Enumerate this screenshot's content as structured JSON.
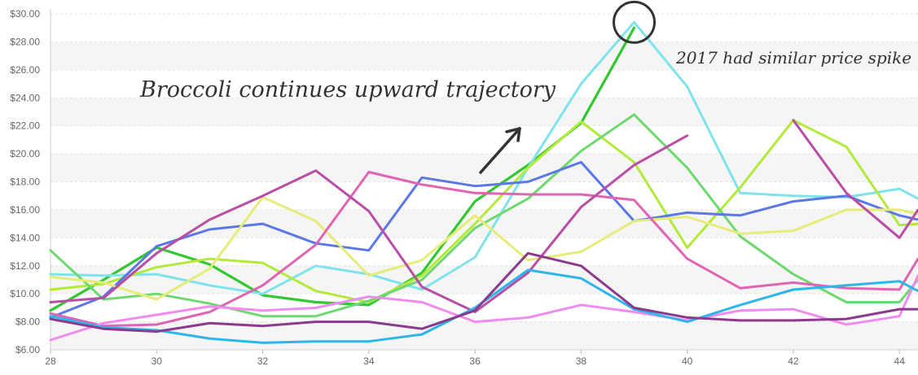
{
  "chart_data": {
    "type": "line",
    "xlim": [
      28,
      44.35
    ],
    "ylim": [
      6,
      30
    ],
    "x_ticks": [
      28,
      30,
      32,
      34,
      36,
      38,
      40,
      42,
      44
    ],
    "y_ticks": [
      6,
      8,
      10,
      12,
      14,
      16,
      18,
      20,
      22,
      24,
      26,
      28,
      30
    ],
    "y_tick_labels": [
      "$6.00",
      "$8.00",
      "$10.00",
      "$12.00",
      "$14.00",
      "$16.00",
      "$18.00",
      "$20.00",
      "$22.00",
      "$24.00",
      "$26.00",
      "$28.00",
      "$30.00"
    ],
    "grid": "alternating horizontal bands",
    "legend": "none",
    "x": [
      28,
      29,
      30,
      31,
      32,
      33,
      34,
      35,
      36,
      37,
      38,
      39,
      40,
      41,
      42,
      43,
      44,
      44.35
    ],
    "series": [
      {
        "color": "#32c832",
        "width": 3.2,
        "values": [
          8.8,
          11.0,
          13.3,
          12.1,
          9.9,
          9.4,
          9.2,
          11.5,
          16.6,
          19.2,
          22.2,
          29.0,
          null,
          null,
          null,
          null,
          null,
          null
        ]
      },
      {
        "color": "#7fe3ec",
        "width": 3.0,
        "values": [
          11.4,
          11.3,
          11.4,
          10.6,
          10.0,
          12.0,
          11.4,
          10.3,
          12.6,
          19.0,
          25.0,
          29.4,
          24.8,
          17.2,
          17.0,
          16.9,
          17.5,
          16.8
        ]
      },
      {
        "color": "#b3ea3a",
        "width": 3.0,
        "values": [
          10.3,
          10.7,
          11.9,
          12.5,
          12.2,
          10.2,
          9.4,
          11.3,
          15.0,
          19.0,
          22.3,
          19.4,
          13.3,
          17.6,
          22.4,
          20.5,
          14.9,
          15.0
        ]
      },
      {
        "color": "#6fd86f",
        "width": 3.0,
        "values": [
          13.1,
          9.6,
          10.0,
          9.3,
          8.4,
          8.4,
          9.5,
          11.0,
          14.7,
          16.8,
          20.2,
          22.8,
          19.0,
          14.1,
          11.4,
          9.4,
          9.4,
          11.0
        ]
      },
      {
        "color": "#5a78e6",
        "width": 3.0,
        "values": [
          8.3,
          9.8,
          13.4,
          14.6,
          15.0,
          13.6,
          13.1,
          18.3,
          17.7,
          18.0,
          19.4,
          15.2,
          15.8,
          15.6,
          16.6,
          17.0,
          15.6,
          15.3
        ]
      },
      {
        "color": "#e6ec78",
        "width": 3.0,
        "values": [
          11.2,
          10.8,
          9.6,
          11.8,
          16.9,
          15.2,
          11.3,
          12.4,
          15.6,
          12.4,
          13.0,
          15.2,
          15.5,
          14.3,
          14.5,
          16.0,
          16.0,
          15.7
        ]
      },
      {
        "color": "#e064b4",
        "width": 3.0,
        "values": [
          8.6,
          7.7,
          7.8,
          8.7,
          10.6,
          13.5,
          18.7,
          17.8,
          17.2,
          17.1,
          17.1,
          16.7,
          12.5,
          10.4,
          10.8,
          10.4,
          10.3,
          12.5
        ]
      },
      {
        "color": "#b84ea6",
        "width": 3.0,
        "values": [
          9.4,
          9.7,
          12.9,
          15.3,
          17.0,
          18.8,
          15.9,
          10.5,
          8.7,
          11.5,
          16.2,
          19.2,
          21.3,
          null,
          22.4,
          17.2,
          14.0,
          16.0
        ]
      },
      {
        "color": "#f08cf0",
        "width": 3.0,
        "values": [
          6.7,
          7.9,
          8.5,
          9.1,
          8.8,
          9.0,
          9.8,
          9.4,
          8.0,
          8.3,
          9.2,
          8.7,
          8.1,
          8.8,
          8.9,
          7.8,
          8.4,
          11.3
        ]
      },
      {
        "color": "#2eb6ea",
        "width": 3.0,
        "values": [
          8.4,
          7.6,
          7.4,
          6.8,
          6.5,
          6.6,
          6.6,
          7.1,
          9.0,
          11.7,
          11.1,
          8.9,
          8.0,
          9.2,
          10.3,
          10.6,
          10.9,
          10.2
        ]
      },
      {
        "color": "#8c3a8c",
        "width": 3.0,
        "values": [
          8.2,
          7.5,
          7.3,
          7.9,
          7.7,
          8.0,
          8.0,
          7.5,
          8.8,
          12.9,
          12.0,
          9.0,
          8.3,
          8.1,
          8.1,
          8.2,
          8.9,
          8.9
        ]
      }
    ],
    "annotations": [
      {
        "text": "Broccoli continues upward trajectory"
      },
      {
        "text": "2017 had similar price spike"
      }
    ],
    "highlight_point": {
      "x": 39,
      "y": 29.4
    }
  }
}
